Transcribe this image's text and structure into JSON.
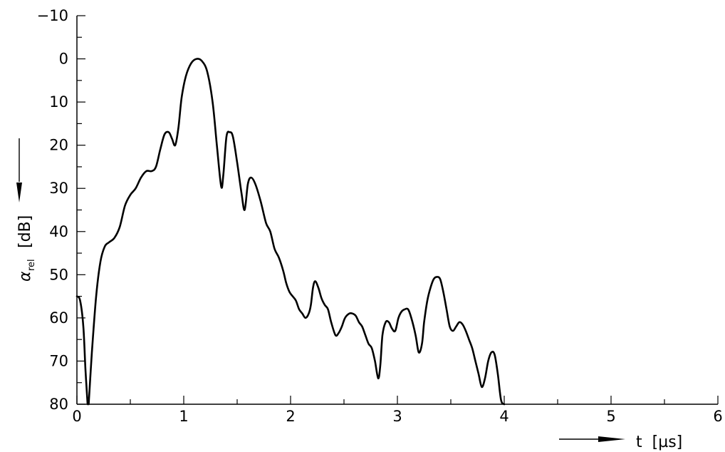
{
  "chart_data": {
    "type": "line",
    "xlabel": "t  [µs]",
    "ylabel": "α",
    "ylabel_subscript": "rel",
    "ylabel_unit": "[dB]",
    "xlim": [
      0,
      6
    ],
    "ylim": [
      -10,
      80
    ],
    "y_inverted": true,
    "grid": false,
    "x_ticks": [
      0,
      1,
      2,
      3,
      4,
      5,
      6
    ],
    "x_tick_labels": [
      "0",
      "1",
      "2",
      "3",
      "4",
      "5",
      "6"
    ],
    "y_ticks": [
      -10,
      0,
      10,
      20,
      30,
      40,
      50,
      60,
      70,
      80
    ],
    "y_tick_labels": [
      "−10",
      "0",
      "10",
      "20",
      "30",
      "40",
      "50",
      "60",
      "70",
      "80"
    ],
    "series": [
      {
        "color": "#000000",
        "segments": [
          [
            [
              0.0,
              55
            ],
            [
              0.03,
              56
            ],
            [
              0.06,
              62
            ],
            [
              0.08,
              72
            ],
            [
              0.1,
              80
            ]
          ],
          [
            [
              0.11,
              80
            ],
            [
              0.14,
              68
            ],
            [
              0.18,
              55
            ],
            [
              0.22,
              47
            ],
            [
              0.26,
              43.5
            ],
            [
              0.3,
              42.5
            ],
            [
              0.35,
              41.5
            ],
            [
              0.4,
              39
            ],
            [
              0.45,
              34
            ],
            [
              0.5,
              31.5
            ],
            [
              0.55,
              30
            ],
            [
              0.6,
              27.5
            ],
            [
              0.65,
              26
            ],
            [
              0.7,
              26
            ],
            [
              0.74,
              25
            ],
            [
              0.78,
              21
            ],
            [
              0.82,
              17.5
            ],
            [
              0.86,
              17
            ],
            [
              0.89,
              18.5
            ],
            [
              0.92,
              20
            ],
            [
              0.95,
              16
            ],
            [
              0.98,
              9
            ],
            [
              1.02,
              4
            ],
            [
              1.07,
              1
            ],
            [
              1.12,
              0
            ],
            [
              1.17,
              0.5
            ],
            [
              1.22,
              3
            ],
            [
              1.27,
              10
            ],
            [
              1.31,
              20
            ],
            [
              1.35,
              29.5
            ],
            [
              1.37,
              27
            ],
            [
              1.4,
              18
            ],
            [
              1.43,
              17
            ],
            [
              1.46,
              18
            ],
            [
              1.5,
              24
            ],
            [
              1.54,
              31
            ],
            [
              1.57,
              35
            ],
            [
              1.6,
              29
            ],
            [
              1.63,
              27.5
            ],
            [
              1.67,
              29
            ],
            [
              1.72,
              33
            ],
            [
              1.77,
              38
            ],
            [
              1.81,
              40
            ],
            [
              1.85,
              44
            ],
            [
              1.89,
              46
            ],
            [
              1.93,
              49
            ],
            [
              1.96,
              52
            ],
            [
              1.99,
              54
            ],
            [
              2.02,
              55
            ],
            [
              2.05,
              56
            ],
            [
              2.08,
              58
            ],
            [
              2.11,
              59
            ],
            [
              2.14,
              60
            ],
            [
              2.17,
              59
            ],
            [
              2.19,
              57
            ],
            [
              2.21,
              53
            ],
            [
              2.23,
              51.5
            ],
            [
              2.26,
              53
            ],
            [
              2.29,
              55.5
            ],
            [
              2.32,
              57
            ],
            [
              2.35,
              58
            ],
            [
              2.38,
              61
            ],
            [
              2.42,
              64
            ],
            [
              2.45,
              63.5
            ],
            [
              2.48,
              62
            ],
            [
              2.51,
              60
            ],
            [
              2.55,
              59
            ],
            [
              2.58,
              59
            ],
            [
              2.61,
              59.5
            ],
            [
              2.64,
              61
            ],
            [
              2.67,
              62
            ],
            [
              2.7,
              64
            ],
            [
              2.73,
              66
            ],
            [
              2.76,
              67
            ],
            [
              2.79,
              70
            ],
            [
              2.82,
              74
            ],
            [
              2.84,
              71
            ],
            [
              2.86,
              64
            ],
            [
              2.89,
              61
            ],
            [
              2.92,
              61
            ],
            [
              2.95,
              62.5
            ],
            [
              2.98,
              63
            ],
            [
              3.01,
              60
            ],
            [
              3.04,
              58.5
            ],
            [
              3.07,
              58
            ],
            [
              3.1,
              58
            ],
            [
              3.13,
              60
            ],
            [
              3.17,
              64
            ],
            [
              3.2,
              68
            ],
            [
              3.23,
              66
            ],
            [
              3.25,
              61
            ],
            [
              3.28,
              56
            ],
            [
              3.31,
              53
            ],
            [
              3.34,
              51
            ],
            [
              3.37,
              50.5
            ],
            [
              3.4,
              51
            ],
            [
              3.43,
              54
            ],
            [
              3.46,
              58
            ],
            [
              3.49,
              62
            ],
            [
              3.52,
              63
            ],
            [
              3.55,
              62
            ],
            [
              3.58,
              61
            ],
            [
              3.61,
              61.5
            ],
            [
              3.64,
              63
            ],
            [
              3.67,
              65
            ],
            [
              3.7,
              67
            ],
            [
              3.73,
              70
            ],
            [
              3.76,
              73
            ],
            [
              3.79,
              76
            ],
            [
              3.82,
              74
            ],
            [
              3.85,
              70
            ],
            [
              3.88,
              68
            ],
            [
              3.91,
              68.5
            ],
            [
              3.94,
              73
            ],
            [
              3.97,
              79
            ],
            [
              4.0,
              80
            ]
          ]
        ]
      }
    ]
  }
}
